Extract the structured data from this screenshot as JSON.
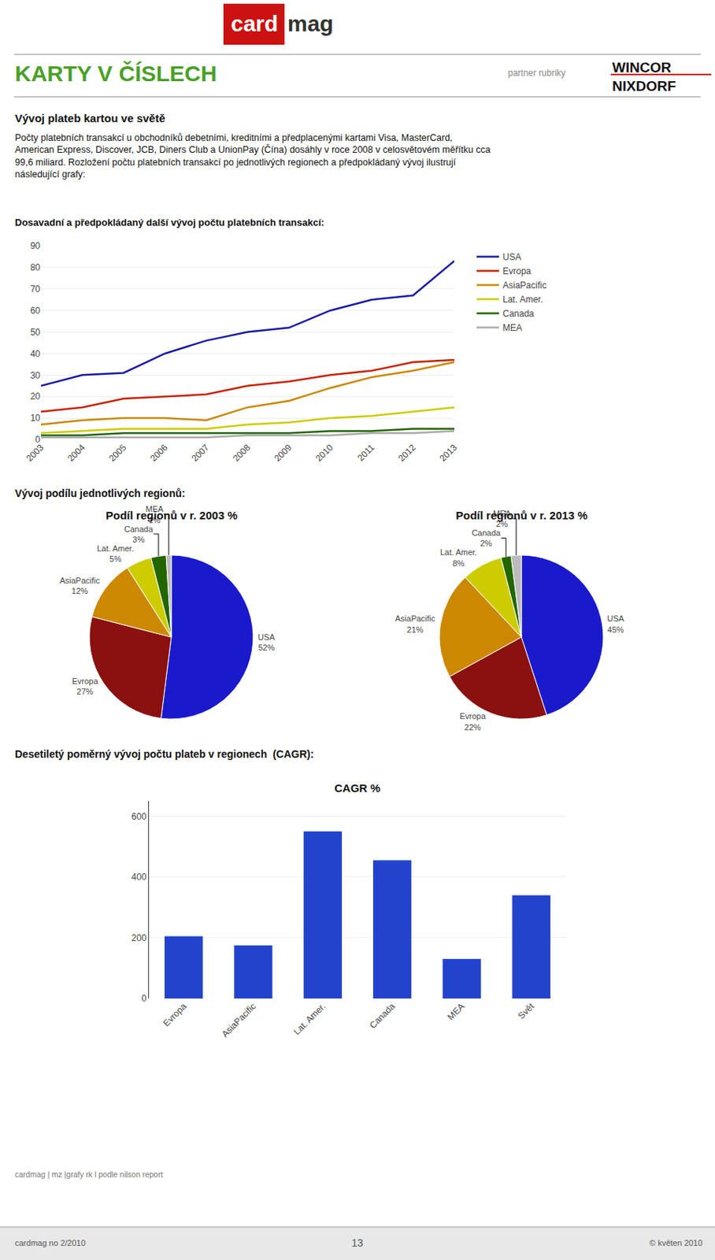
{
  "annotations": [
    "card",
    "mag",
    "KARTY V ČÍSLECH",
    "partner rubriky",
    "WINCOR",
    "NIXDORF",
    "Vývoj plateb kartou ve světě",
    "Počty platebních transakcí u obchodníků debetními, kreditními a předplacenými kartami Visa, MasterCard,\nAmerican Express, Discover, JCB, Diners Club a UnionPay (Čína) dosáhly v roce 2008 v celosvětovém měřítku cca\n99,6 miliard. Rozložení počtu platebních transakcí po jednotlivých regionech a předpokládaný vývoj ilustrují\nnásledující grafy:",
    "Vývoj podílu jednotlivých regionů:",
    "cardmag | mz |grafy rk l podle nilson report",
    "cardmag no 2/2010",
    "13",
    "© květen 2010"
  ],
  "chart_data": [
    {
      "type": "line",
      "title": "Dosavadní a předpokládaný další vývoj počtu platebních transakcí:",
      "x": [
        2003,
        2004,
        2005,
        2006,
        2007,
        2008,
        2009,
        2010,
        2011,
        2012,
        2013
      ],
      "series": [
        {
          "name": "USA",
          "color": "#1a1aaa",
          "values": [
            25,
            30,
            31,
            40,
            46,
            50,
            52,
            60,
            65,
            67,
            83
          ]
        },
        {
          "name": "Evropa",
          "color": "#cc2200",
          "values": [
            13,
            15,
            19,
            20,
            21,
            25,
            27,
            30,
            32,
            36,
            37
          ]
        },
        {
          "name": "AsiaPacific",
          "color": "#cc8800",
          "values": [
            7,
            9,
            10,
            10,
            9,
            15,
            18,
            24,
            29,
            32,
            36
          ]
        },
        {
          "name": "Lat. Amer.",
          "color": "#cccc00",
          "values": [
            3,
            4,
            5,
            5,
            5,
            7,
            8,
            10,
            11,
            13,
            15
          ]
        },
        {
          "name": "Canada",
          "color": "#226600",
          "values": [
            2,
            2,
            3,
            3,
            3,
            3,
            3,
            4,
            4,
            5,
            5
          ]
        },
        {
          "name": "MEA",
          "color": "#aaaaaa",
          "values": [
            1,
            1,
            1,
            1,
            1,
            2,
            2,
            2,
            3,
            3,
            4
          ]
        }
      ],
      "xlim": [
        2003,
        2013
      ],
      "xticks": [
        2003,
        2004,
        2005,
        2006,
        2007,
        2008,
        2009,
        2010,
        2011,
        2012,
        2013
      ],
      "ylim": [
        0,
        90
      ],
      "yticks": [
        0,
        10,
        20,
        30,
        40,
        50,
        60,
        70,
        80,
        90
      ],
      "grid": true,
      "legend": "right"
    },
    {
      "type": "pie",
      "title": "Podíl regionů v r. 2003 %",
      "categories": [
        "USA",
        "Evropa",
        "AsiaPacific",
        "Lat. Amer.",
        "Canada",
        "MEA"
      ],
      "values": [
        52,
        27,
        12,
        5,
        3,
        1
      ],
      "value_labels": [
        "52%",
        "27%",
        "12%",
        "5%",
        "3%",
        "1%"
      ],
      "colors": [
        "#1a1acc",
        "#8b1010",
        "#cc8800",
        "#cccc00",
        "#226600",
        "#bbbbbb"
      ],
      "data_labels": true
    },
    {
      "type": "pie",
      "title": "Podíl regionů v r. 2013 %",
      "categories": [
        "USA",
        "Evropa",
        "AsiaPacific",
        "Lat. Amer.",
        "Canada",
        "MEA"
      ],
      "values": [
        45,
        22,
        21,
        8,
        2,
        2
      ],
      "value_labels": [
        "45%",
        "22%",
        "21%",
        "8%",
        "2%",
        "2%"
      ],
      "colors": [
        "#1a1acc",
        "#8b1010",
        "#cc8800",
        "#cccc00",
        "#226600",
        "#bbbbbb"
      ],
      "data_labels": true
    },
    {
      "type": "bar",
      "title": "CAGR %",
      "subtitle": "Desetiletý poměrný vývoj počtu plateb v regionech  (CAGR):",
      "categories": [
        "Evropa",
        "AsiaPacific",
        "Lat. Amer.",
        "Canada",
        "MEA",
        "Svět"
      ],
      "values": [
        205,
        175,
        550,
        455,
        130,
        340
      ],
      "color": "#2244cc",
      "ylim": [
        0,
        650
      ],
      "yticks": [
        0,
        200,
        400,
        600
      ],
      "grid": true
    }
  ]
}
